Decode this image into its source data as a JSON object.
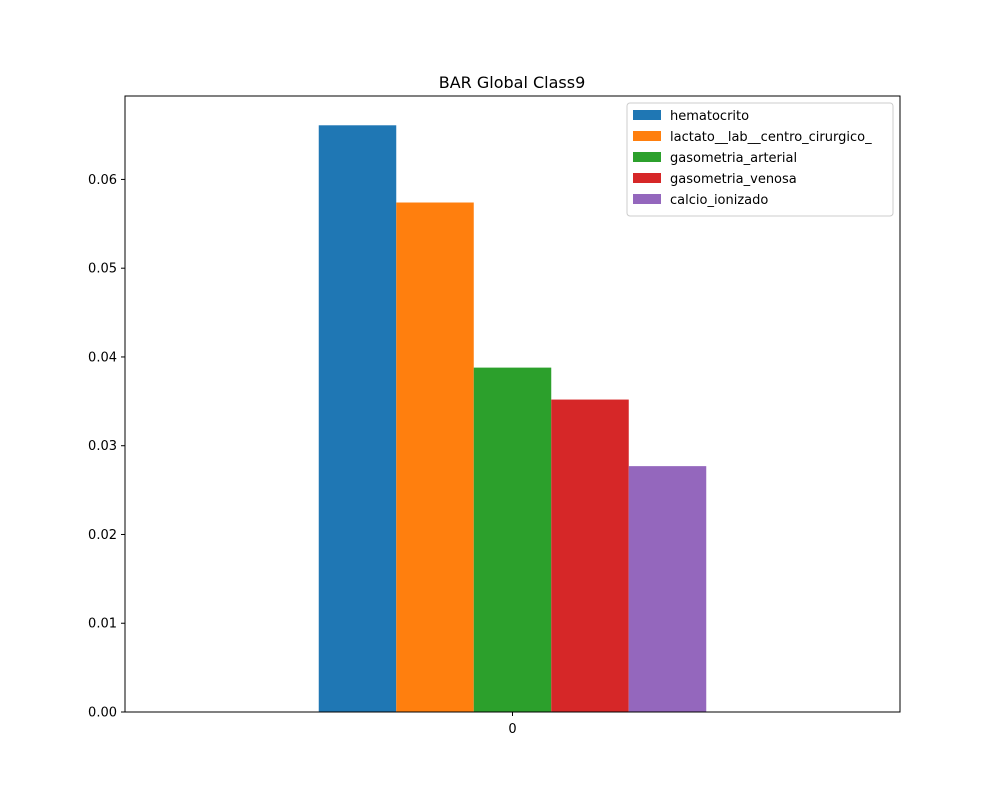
{
  "chart_data": {
    "type": "bar",
    "title": "BAR Global Class9",
    "xlabel": "",
    "ylabel": "",
    "categories": [
      "0"
    ],
    "series": [
      {
        "name": "hematocrito",
        "values": [
          0.0661
        ],
        "color": "#1f77b4"
      },
      {
        "name": "lactato__lab__centro_cirurgico_",
        "values": [
          0.0574
        ],
        "color": "#ff7f0e"
      },
      {
        "name": "gasometria_arterial",
        "values": [
          0.0388
        ],
        "color": "#2ca02c"
      },
      {
        "name": "gasometria_venosa",
        "values": [
          0.0352
        ],
        "color": "#d62728"
      },
      {
        "name": "calcio_ionizado",
        "values": [
          0.0277
        ],
        "color": "#9467bd"
      }
    ],
    "ylim": [
      0,
      0.0694
    ],
    "yticks": [
      0,
      0.01,
      0.02,
      0.03,
      0.04,
      0.05,
      0.06
    ],
    "ytick_labels": [
      "0.00",
      "0.01",
      "0.02",
      "0.03",
      "0.04",
      "0.05",
      "0.06"
    ],
    "grid": false,
    "legend_position": "top-right"
  }
}
